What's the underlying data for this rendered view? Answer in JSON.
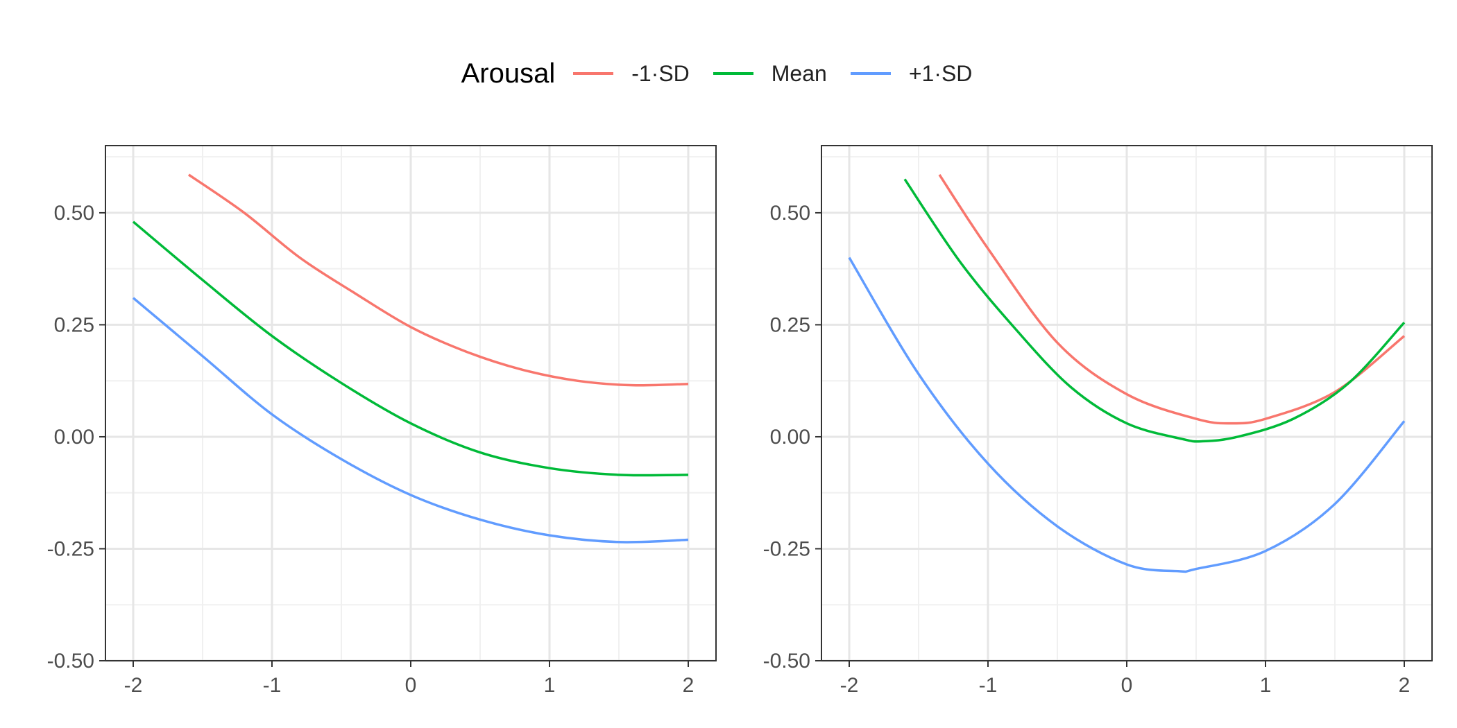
{
  "legend": {
    "title": "Arousal",
    "items": [
      {
        "label": "-1·SD",
        "color": "#F8766D"
      },
      {
        "label": "Mean",
        "color": "#00BA38"
      },
      {
        "label": "+1·SD",
        "color": "#619CFF"
      }
    ]
  },
  "chart_data": [
    {
      "type": "line",
      "title": "",
      "xlabel": "",
      "ylabel": "",
      "xlim": [
        -2.2,
        2.2
      ],
      "ylim": [
        -0.5,
        0.65
      ],
      "xticks": [
        "-2",
        "-1",
        "0",
        "1",
        "2"
      ],
      "xtick_values": [
        -2,
        -1,
        0,
        1,
        2
      ],
      "yticks": [
        "-0.50",
        "-0.25",
        "0.00",
        "0.25",
        "0.50"
      ],
      "ytick_values": [
        -0.5,
        -0.25,
        0,
        0.25,
        0.5
      ],
      "grid": true,
      "series": [
        {
          "name": "-1·SD",
          "color": "#F8766D",
          "x": [
            -1.6,
            -1.2,
            -0.8,
            -0.4,
            0.0,
            0.4,
            0.8,
            1.2,
            1.6,
            2.0
          ],
          "y": [
            0.585,
            0.5,
            0.4,
            0.32,
            0.245,
            0.19,
            0.15,
            0.125,
            0.115,
            0.118
          ]
        },
        {
          "name": "Mean",
          "color": "#00BA38",
          "x": [
            -2.0,
            -1.5,
            -1.0,
            -0.5,
            0.0,
            0.5,
            1.0,
            1.5,
            2.0
          ],
          "y": [
            0.48,
            0.35,
            0.225,
            0.12,
            0.03,
            -0.035,
            -0.07,
            -0.085,
            -0.085
          ]
        },
        {
          "name": "+1·SD",
          "color": "#619CFF",
          "x": [
            -2.0,
            -1.5,
            -1.0,
            -0.5,
            0.0,
            0.5,
            1.0,
            1.5,
            2.0
          ],
          "y": [
            0.31,
            0.18,
            0.05,
            -0.05,
            -0.13,
            -0.185,
            -0.22,
            -0.235,
            -0.23
          ]
        }
      ]
    },
    {
      "type": "line",
      "title": "",
      "xlabel": "",
      "ylabel": "",
      "xlim": [
        -2.2,
        2.2
      ],
      "ylim": [
        -0.5,
        0.65
      ],
      "xticks": [
        "-2",
        "-1",
        "0",
        "1",
        "2"
      ],
      "xtick_values": [
        -2,
        -1,
        0,
        1,
        2
      ],
      "yticks": [
        "-0.50",
        "-0.25",
        "0.00",
        "0.25",
        "0.50"
      ],
      "ytick_values": [
        -0.5,
        -0.25,
        0,
        0.25,
        0.5
      ],
      "grid": true,
      "series": [
        {
          "name": "-1·SD",
          "color": "#F8766D",
          "x": [
            -1.35,
            -1.0,
            -0.5,
            0.0,
            0.5,
            0.75,
            1.0,
            1.5,
            2.0
          ],
          "y": [
            0.585,
            0.42,
            0.21,
            0.095,
            0.04,
            0.03,
            0.04,
            0.1,
            0.225
          ]
        },
        {
          "name": "Mean",
          "color": "#00BA38",
          "x": [
            -1.6,
            -1.2,
            -0.8,
            -0.4,
            0.0,
            0.4,
            0.55,
            0.8,
            1.2,
            1.6,
            2.0
          ],
          "y": [
            0.575,
            0.39,
            0.24,
            0.11,
            0.03,
            -0.005,
            -0.01,
            0.0,
            0.04,
            0.12,
            0.255
          ]
        },
        {
          "name": "+1·SD",
          "color": "#619CFF",
          "x": [
            -2.0,
            -1.5,
            -1.0,
            -0.5,
            0.0,
            0.37,
            0.5,
            1.0,
            1.5,
            2.0
          ],
          "y": [
            0.4,
            0.14,
            -0.06,
            -0.2,
            -0.285,
            -0.3,
            -0.295,
            -0.255,
            -0.15,
            0.035
          ]
        }
      ]
    }
  ]
}
